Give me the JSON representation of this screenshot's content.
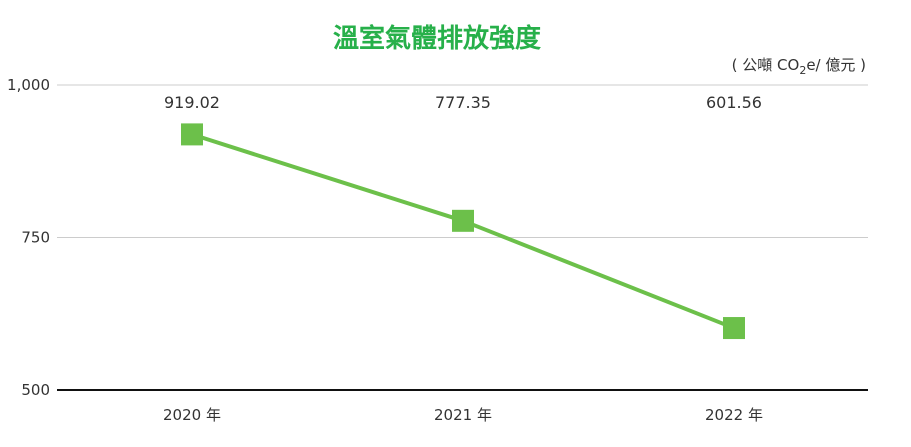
{
  "colors": {
    "title": "#27b04a",
    "series": "#6cc04a",
    "grid": "#cccccc",
    "axis": "#111111",
    "text": "#333333"
  },
  "chart_data": {
    "type": "line",
    "title": "溫室氣體排放強度",
    "unit_label_parts": {
      "before": "( 公噸 CO",
      "sub": "2",
      "after": "e/ 億元 )"
    },
    "categories": [
      "2020 年",
      "2021 年",
      "2022 年"
    ],
    "series": [
      {
        "values": [
          919.02,
          777.35,
          601.56
        ]
      }
    ],
    "data_labels": [
      "919.02",
      "777.35",
      "601.56"
    ],
    "yticks": [
      {
        "value": 1000,
        "label": "1,000"
      },
      {
        "value": 750,
        "label": "750"
      },
      {
        "value": 500,
        "label": "500"
      }
    ],
    "ylim": [
      500,
      1000
    ],
    "grid": true,
    "marker": "square"
  }
}
